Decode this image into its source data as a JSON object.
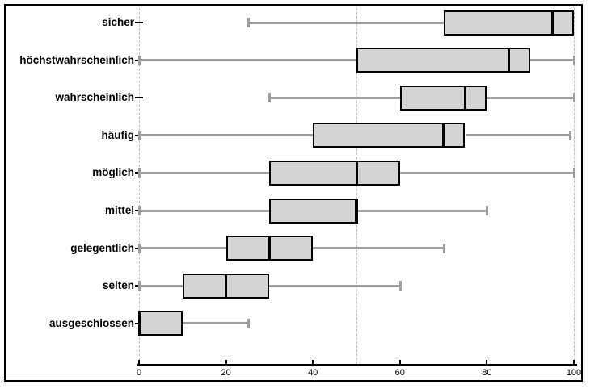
{
  "chart_data": {
    "type": "boxplot",
    "orientation": "horizontal",
    "title": "",
    "xlabel": "",
    "ylabel": "",
    "categories": [
      "sicher",
      "höchstwahrscheinlich",
      "wahrscheinlich",
      "häufig",
      "möglich",
      "mittel",
      "gelegentlich",
      "selten",
      "ausgeschlossen"
    ],
    "boxes": [
      {
        "label": "sicher",
        "min": 25,
        "q1": 70,
        "median": 95,
        "q3": 100,
        "max": 100
      },
      {
        "label": "höchstwahrscheinlich",
        "min": 0,
        "q1": 50,
        "median": 85,
        "q3": 90,
        "max": 100
      },
      {
        "label": "wahrscheinlich",
        "min": 30,
        "q1": 60,
        "median": 75,
        "q3": 80,
        "max": 100
      },
      {
        "label": "häufig",
        "min": 0,
        "q1": 40,
        "median": 70,
        "q3": 75,
        "max": 99
      },
      {
        "label": "möglich",
        "min": 0,
        "q1": 30,
        "median": 50,
        "q3": 60,
        "max": 100
      },
      {
        "label": "mittel",
        "min": 0,
        "q1": 30,
        "median": 50,
        "q3": 50,
        "max": 80
      },
      {
        "label": "gelegentlich",
        "min": 0,
        "q1": 20,
        "median": 30,
        "q3": 40,
        "max": 70
      },
      {
        "label": "selten",
        "min": 0,
        "q1": 10,
        "median": 20,
        "q3": 30,
        "max": 60
      },
      {
        "label": "ausgeschlossen",
        "min": 0,
        "q1": 0,
        "median": 0,
        "q3": 10,
        "max": 25
      }
    ],
    "xlim": [
      0,
      100
    ],
    "x_tick_labels": [
      "0",
      "20",
      "40",
      "60",
      "80",
      "100"
    ],
    "x_tick_values": [
      0,
      20,
      40,
      60,
      80,
      100
    ],
    "reference_lines": {
      "values": [
        0,
        50,
        100
      ],
      "style": "dashed"
    },
    "grid": "vertical-dashed-only",
    "legend": "none",
    "colors": {
      "box_fill": "#d4d4d4",
      "box_border": "#000000",
      "median": "#000000",
      "whisker": "#9e9e9e",
      "reference_line": "#bdbdbd",
      "axis": "#000000",
      "frame_border": "#000000",
      "background": "#ffffff"
    }
  }
}
